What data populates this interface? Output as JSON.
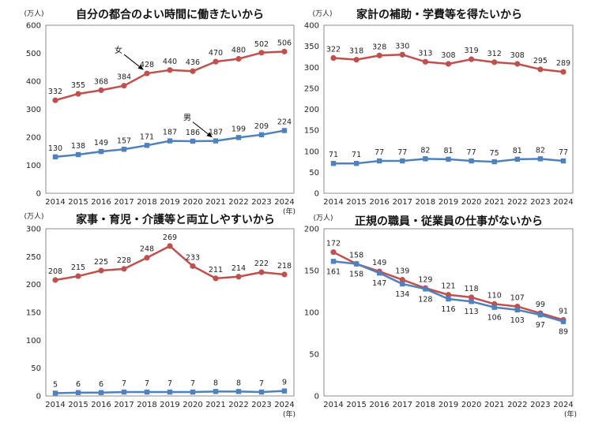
{
  "chart_data": [
    {
      "type": "line",
      "title": "自分の都合のよい時間に働きたいから",
      "unit": "(万人)",
      "xunit": "(年)",
      "categories": [
        "2014",
        "2015",
        "2016",
        "2017",
        "2018",
        "2019",
        "2020",
        "2021",
        "2022",
        "2023",
        "2024"
      ],
      "ylim": [
        0,
        600
      ],
      "yticks": [
        0,
        100,
        200,
        300,
        400,
        500,
        600
      ],
      "grid": false,
      "series": [
        {
          "name": "女",
          "color": "#C0504D",
          "marker": "circle",
          "label_position": "above",
          "callout_at": "2018",
          "values": [
            332,
            355,
            368,
            384,
            428,
            440,
            436,
            470,
            480,
            502,
            506
          ]
        },
        {
          "name": "男",
          "color": "#4F81BD",
          "marker": "square",
          "label_position": "above",
          "callout_at": "2021",
          "values": [
            130,
            138,
            149,
            157,
            171,
            187,
            186,
            187,
            199,
            209,
            224
          ]
        }
      ]
    },
    {
      "type": "line",
      "title": "家計の補助・学費等を得たいから",
      "unit": "(万人)",
      "categories": [
        "2014",
        "2015",
        "2016",
        "2017",
        "2018",
        "2019",
        "2020",
        "2021",
        "2022",
        "2023",
        "2024"
      ],
      "ylim": [
        0,
        400
      ],
      "yticks": [
        0,
        50,
        100,
        150,
        200,
        250,
        300,
        350,
        400
      ],
      "grid": false,
      "series": [
        {
          "color": "#C0504D",
          "marker": "circle",
          "label_position": "above",
          "values": [
            322,
            318,
            328,
            330,
            313,
            308,
            319,
            312,
            308,
            295,
            289
          ]
        },
        {
          "color": "#4F81BD",
          "marker": "square",
          "label_position": "above",
          "values": [
            71,
            71,
            77,
            77,
            82,
            81,
            77,
            75,
            81,
            82,
            77
          ]
        }
      ]
    },
    {
      "type": "line",
      "title": "家事・育児・介護等と両立しやすいから",
      "unit": "(万人)",
      "xunit": "(年)",
      "categories": [
        "2014",
        "2015",
        "2016",
        "2017",
        "2018",
        "2019",
        "2020",
        "2021",
        "2022",
        "2023",
        "2024"
      ],
      "ylim": [
        0,
        300
      ],
      "yticks": [
        0,
        50,
        100,
        150,
        200,
        250,
        300
      ],
      "grid": false,
      "series": [
        {
          "color": "#C0504D",
          "marker": "circle",
          "label_position": "above",
          "values": [
            208,
            215,
            225,
            228,
            248,
            269,
            233,
            211,
            214,
            222,
            218
          ]
        },
        {
          "color": "#4F81BD",
          "marker": "square",
          "label_position": "above",
          "values": [
            5,
            6,
            6,
            7,
            7,
            7,
            7,
            8,
            8,
            7,
            9
          ]
        }
      ]
    },
    {
      "type": "line",
      "title": "正規の職員・従業員の仕事がないから",
      "unit": "(万人)",
      "xunit": "(年)",
      "categories": [
        "2014",
        "2015",
        "2016",
        "2017",
        "2018",
        "2019",
        "2020",
        "2021",
        "2022",
        "2023",
        "2024"
      ],
      "ylim": [
        0,
        200
      ],
      "yticks": [
        0,
        50,
        100,
        150,
        200
      ],
      "grid": false,
      "series": [
        {
          "color": "#C0504D",
          "marker": "circle",
          "label_position": "above",
          "values": [
            172,
            158,
            149,
            139,
            129,
            121,
            118,
            110,
            107,
            99,
            91
          ]
        },
        {
          "color": "#4F81BD",
          "marker": "square",
          "label_position": "below",
          "values": [
            161,
            158,
            147,
            134,
            128,
            116,
            113,
            106,
            103,
            97,
            89
          ]
        }
      ]
    }
  ]
}
